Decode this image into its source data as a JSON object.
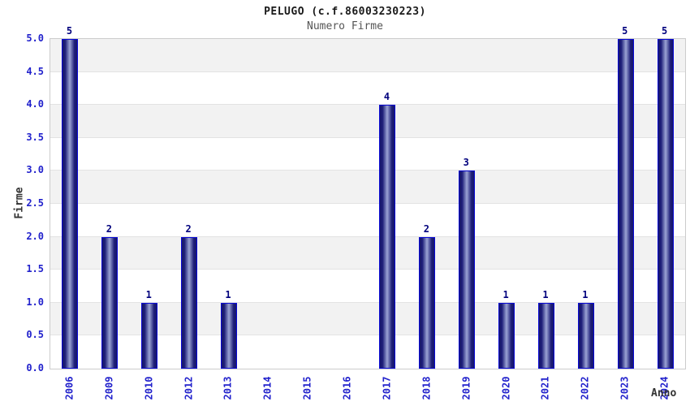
{
  "chart_data": {
    "type": "bar",
    "title": "PELUGO (c.f.86003230223)",
    "subtitle": "Numero Firme",
    "xlabel": "Anno",
    "ylabel": "Firme",
    "categories": [
      "2006",
      "2009",
      "2010",
      "2012",
      "2013",
      "2014",
      "2015",
      "2016",
      "2017",
      "2018",
      "2019",
      "2020",
      "2021",
      "2022",
      "2023",
      "2024"
    ],
    "values": [
      5,
      2,
      1,
      2,
      1,
      null,
      null,
      null,
      4,
      2,
      3,
      1,
      1,
      1,
      5,
      5
    ],
    "ylim": [
      0,
      5
    ],
    "y_tick_step": 0.5,
    "y_ticks": [
      "0.0",
      "0.5",
      "1.0",
      "1.5",
      "2.0",
      "2.5",
      "3.0",
      "3.5",
      "4.0",
      "4.5",
      "5.0"
    ],
    "grid": true,
    "legend": "none",
    "colors": {
      "title": "#1a1a1a",
      "subtitle": "#555555",
      "axis_label": "#333333",
      "tick_label": "#2222cc",
      "value_label": "#00007d",
      "bar_border": "#0909d6",
      "bar_dark": "#17176b",
      "bar_mid": "#1d1d78",
      "bar_light": "#9ba3d4",
      "band_gray": "#f2f2f2",
      "band_white": "#ffffff",
      "gridline": "#e3e3e3",
      "plot_border": "#cccccc",
      "background": "#ffffff"
    }
  }
}
